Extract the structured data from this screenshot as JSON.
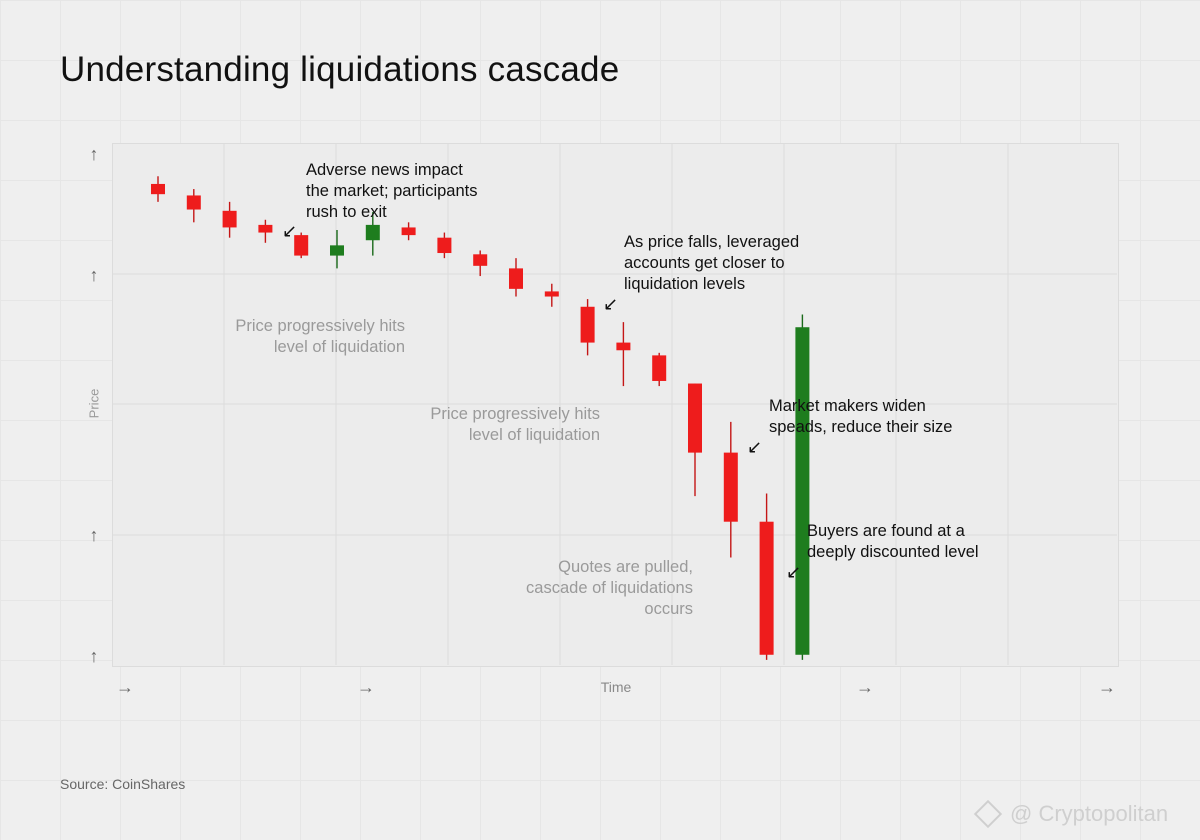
{
  "page": {
    "title": "Understanding liquidations cascade",
    "source": "Source: CoinShares",
    "watermark": "@ Cryptopolitan",
    "watermark_icon": "diamond-logo-icon"
  },
  "colors": {
    "down": "#ee1c1c",
    "up": "#1e7d1e",
    "wick_down": "#c41616",
    "wick_up": "#1a6a1a"
  },
  "chart_data": {
    "type": "candlestick",
    "xlabel": "Time",
    "ylabel": "Price",
    "axis_arrows": {
      "y": "↑",
      "x": "→"
    },
    "grid": true,
    "candles": [
      {
        "t": 1,
        "open": 84,
        "close": 80,
        "high": 87,
        "low": 77,
        "dir": "down"
      },
      {
        "t": 2,
        "open": 79.5,
        "close": 74,
        "high": 82,
        "low": 69,
        "dir": "down"
      },
      {
        "t": 3,
        "open": 73.5,
        "close": 67,
        "high": 77,
        "low": 63,
        "dir": "down"
      },
      {
        "t": 4,
        "open": 68,
        "close": 65,
        "high": 70,
        "low": 61,
        "dir": "down"
      },
      {
        "t": 5,
        "open": 64,
        "close": 56,
        "high": 65,
        "low": 55,
        "dir": "down"
      },
      {
        "t": 6,
        "open": 56,
        "close": 60,
        "high": 66,
        "low": 51,
        "dir": "up"
      },
      {
        "t": 7,
        "open": 62,
        "close": 68,
        "high": 73,
        "low": 56,
        "dir": "up"
      },
      {
        "t": 8,
        "open": 67,
        "close": 64,
        "high": 69,
        "low": 62,
        "dir": "down"
      },
      {
        "t": 9,
        "open": 63,
        "close": 57,
        "high": 65,
        "low": 55,
        "dir": "down"
      },
      {
        "t": 10,
        "open": 56.5,
        "close": 52,
        "high": 58,
        "low": 48,
        "dir": "down"
      },
      {
        "t": 11,
        "open": 51,
        "close": 43,
        "high": 55,
        "low": 40,
        "dir": "down"
      },
      {
        "t": 12,
        "open": 42,
        "close": 40,
        "high": 45,
        "low": 36,
        "dir": "down"
      },
      {
        "t": 13,
        "open": 36,
        "close": 22,
        "high": 39,
        "low": 17,
        "dir": "down"
      },
      {
        "t": 14,
        "open": 22,
        "close": 19,
        "high": 30,
        "low": 5,
        "dir": "down"
      },
      {
        "t": 15,
        "open": 17,
        "close": 7,
        "high": 18,
        "low": 5,
        "dir": "down"
      },
      {
        "t": 16,
        "open": 6,
        "close": -21,
        "high": 6,
        "low": -38,
        "dir": "down"
      },
      {
        "t": 17,
        "open": -21,
        "close": -48,
        "high": -9,
        "low": -62,
        "dir": "down"
      },
      {
        "t": 18,
        "open": -48,
        "close": -100,
        "high": -37,
        "low": -102,
        "dir": "down"
      },
      {
        "t": 19,
        "open": -100,
        "close": 28,
        "high": 33,
        "low": -102,
        "dir": "up"
      }
    ],
    "annotations": [
      {
        "id": "adverse-news",
        "lines": [
          "Adverse news impact",
          "the market; participants",
          "rush to exit"
        ],
        "style": "dark"
      },
      {
        "id": "price-falls",
        "lines": [
          "As price falls, leveraged",
          "accounts get closer to",
          "liquidation levels"
        ],
        "style": "dark"
      },
      {
        "id": "market-makers",
        "lines": [
          "Market makers widen",
          "speads, reduce their size"
        ],
        "style": "dark"
      },
      {
        "id": "buyers-found",
        "lines": [
          "Buyers are found at a",
          "deeply discounted level"
        ],
        "style": "dark"
      },
      {
        "id": "liquidation-1",
        "lines": [
          "Price progressively hits",
          "level of liquidation"
        ],
        "style": "gray"
      },
      {
        "id": "liquidation-2",
        "lines": [
          "Price progressively hits",
          "level of liquidation"
        ],
        "style": "gray"
      },
      {
        "id": "quotes-pulled",
        "lines": [
          "Quotes are pulled,",
          "cascade of liquidations",
          "occurs"
        ],
        "style": "gray"
      }
    ],
    "pointer_arrow": "↙"
  }
}
